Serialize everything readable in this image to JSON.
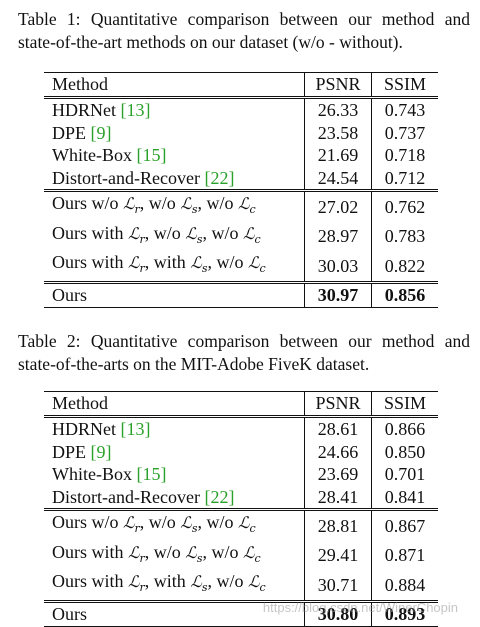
{
  "table1": {
    "caption": "Table 1: Quantitative comparison between our method and state-of-the-art methods on our dataset (w/o - without).",
    "headers": [
      "Method",
      "PSNR",
      "SSIM"
    ],
    "rows": [
      {
        "method": "HDRNet",
        "ref": "[13]",
        "psnr": "26.33",
        "ssim": "0.743"
      },
      {
        "method": "DPE",
        "ref": "[9]",
        "psnr": "23.58",
        "ssim": "0.737"
      },
      {
        "method": "White-Box",
        "ref": "[15]",
        "psnr": "21.69",
        "ssim": "0.718"
      },
      {
        "method": "Distort-and-Recover",
        "ref": "[22]",
        "psnr": "24.54",
        "ssim": "0.712"
      }
    ],
    "ablation": [
      {
        "lead": "Ours w/o",
        "psnr": "27.02",
        "ssim": "0.762"
      },
      {
        "lead": "Ours with",
        "psnr": "28.97",
        "ssim": "0.783"
      },
      {
        "lead": "Ours with",
        "psnr": "30.03",
        "ssim": "0.822"
      }
    ],
    "ours": {
      "method": "Ours",
      "psnr": "30.97",
      "ssim": "0.856"
    }
  },
  "table2": {
    "caption": "Table 2: Quantitative comparison between our method and state-of-the-arts on the MIT-Adobe FiveK dataset.",
    "headers": [
      "Method",
      "PSNR",
      "SSIM"
    ],
    "rows": [
      {
        "method": "HDRNet",
        "ref": "[13]",
        "psnr": "28.61",
        "ssim": "0.866"
      },
      {
        "method": "DPE",
        "ref": "[9]",
        "psnr": "24.66",
        "ssim": "0.850"
      },
      {
        "method": "White-Box",
        "ref": "[15]",
        "psnr": "23.69",
        "ssim": "0.701"
      },
      {
        "method": "Distort-and-Recover",
        "ref": "[22]",
        "psnr": "28.41",
        "ssim": "0.841"
      }
    ],
    "ablation": [
      {
        "lead": "Ours w/o",
        "psnr": "28.81",
        "ssim": "0.867"
      },
      {
        "lead": "Ours with",
        "psnr": "29.41",
        "ssim": "0.871"
      },
      {
        "lead": "Ours with",
        "psnr": "30.71",
        "ssim": "0.884"
      }
    ],
    "ours": {
      "method": "Ours",
      "psnr": "30.80",
      "ssim": "0.893"
    }
  },
  "math": {
    "L": "ℒ",
    "r": "r",
    "s": "s",
    "c": "c",
    "wo": "w/o",
    "with": "with"
  },
  "watermark": "https://blog.csdn.net/WinerChopin"
}
